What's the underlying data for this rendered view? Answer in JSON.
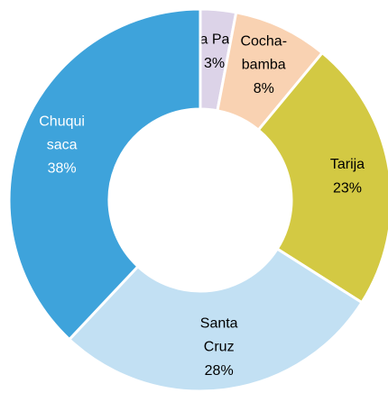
{
  "chart_data": {
    "type": "donut",
    "categories": [
      "La Paz",
      "Cocha-\nbamba",
      "Tarija",
      "Santa\nCruz",
      "Chuqui\nsaca"
    ],
    "values": [
      3,
      8,
      23,
      28,
      38
    ],
    "value_labels": [
      "3%",
      "8%",
      "23%",
      "28%",
      "38%"
    ],
    "colors": [
      "#dcd3e8",
      "#f9d2b2",
      "#d3c943",
      "#c2e0f3",
      "#3ea3db"
    ]
  }
}
